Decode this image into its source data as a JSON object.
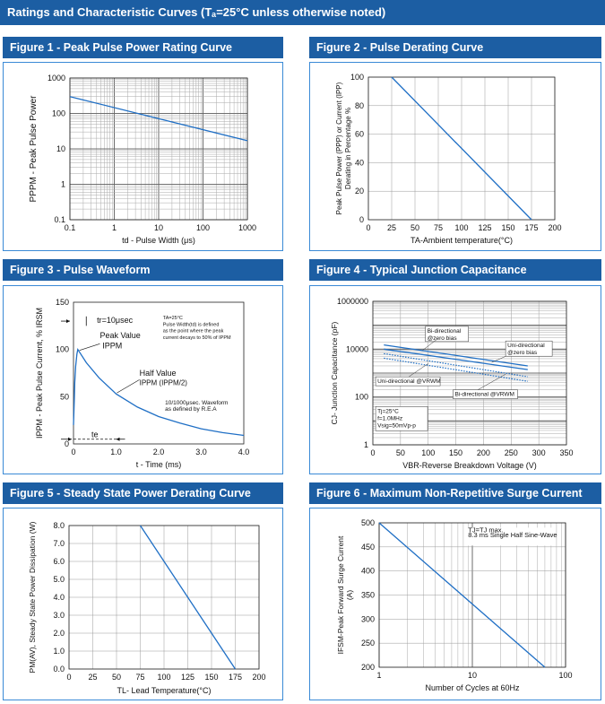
{
  "header": {
    "title": "Ratings and Characteristic Curves (Tₐ=25°C unless otherwise noted)"
  },
  "figures": {
    "f1": {
      "title": "Figure 1 - Peak Pulse Power Rating Curve"
    },
    "f2": {
      "title": "Figure 2 - Pulse Derating Curve"
    },
    "f3": {
      "title": "Figure 3 - Pulse Waveform"
    },
    "f4": {
      "title": "Figure 4 - Typical Junction Capacitance"
    },
    "f5": {
      "title": "Figure 5 - Steady State Power Derating Curve"
    },
    "f6": {
      "title": "Figure 6 - Maximum Non-Repetitive Surge Current"
    }
  },
  "colors": {
    "header_bg": "#1c5ea3",
    "frame": "#3a8ad6",
    "curve": "#1f6fc5",
    "grid": "#999999"
  },
  "chart_data": [
    {
      "id": "f1",
      "type": "line",
      "xscale": "log",
      "yscale": "log",
      "title": "Figure 1 - Peak Pulse Power Rating Curve",
      "xlabel": "td - Pulse Width (μs)",
      "ylabel": "PPPM - Peak Pulse Power",
      "xlim": [
        0.1,
        1000
      ],
      "ylim": [
        0.1,
        1000
      ],
      "xticks": [
        0.1,
        1,
        10,
        100,
        1000
      ],
      "xtick_labels": [
        "0.1",
        "1",
        "10",
        "100",
        "1000"
      ],
      "yticks": [
        0.1,
        1,
        10,
        100,
        1000
      ],
      "ytick_labels": [
        "0.1",
        "1",
        "10",
        "100",
        "1000"
      ],
      "series": [
        {
          "name": "PPPM",
          "x": [
            0.1,
            1000
          ],
          "y": [
            300,
            17
          ]
        }
      ]
    },
    {
      "id": "f2",
      "type": "line",
      "title": "Figure 2 - Pulse Derating Curve",
      "xlabel": "TA-Ambient temperature(°C)",
      "ylabel": [
        "Peak Pulse Power (PPP) or Current (IPP)",
        "Derating in Percentage %"
      ],
      "xlim": [
        0,
        200
      ],
      "ylim": [
        0,
        100
      ],
      "xticks": [
        0,
        25,
        50,
        75,
        100,
        125,
        150,
        175,
        200
      ],
      "xtick_labels": [
        "0",
        "25",
        "50",
        "75",
        "100",
        "125",
        "150",
        "175",
        "200"
      ],
      "yticks": [
        0,
        20,
        40,
        60,
        80,
        100
      ],
      "ytick_labels": [
        "0",
        "20",
        "40",
        "60",
        "80",
        "100"
      ],
      "series": [
        {
          "name": "Derating",
          "x": [
            25,
            175
          ],
          "y": [
            100,
            0
          ]
        }
      ]
    },
    {
      "id": "f3",
      "type": "line",
      "title": "Figure 3 - Pulse Waveform",
      "xlabel": "t - Time (ms)",
      "ylabel": "IPPM - Peak Pulse Current, % IRSM",
      "xlim": [
        0,
        4.0
      ],
      "ylim": [
        0,
        150
      ],
      "xticks": [
        0,
        1.0,
        2.0,
        3.0,
        4.0
      ],
      "xtick_labels": [
        "0",
        "1.0",
        "2.0",
        "3.0",
        "4.0"
      ],
      "yticks": [
        0,
        50,
        100,
        150
      ],
      "ytick_labels": [
        "0",
        "50",
        "100",
        "150"
      ],
      "series": [
        {
          "name": "Waveform",
          "x": [
            0,
            0.01,
            0.02,
            0.03,
            0.05,
            0.08,
            0.1,
            0.3,
            0.6,
            1.0,
            1.5,
            2.0,
            2.5,
            3.0,
            3.5,
            4.0
          ],
          "y": [
            20,
            35,
            50,
            65,
            82,
            95,
            100,
            86,
            70,
            53,
            39,
            29,
            22,
            16,
            12,
            9
          ]
        }
      ],
      "annotations": {
        "tr": "tr=10μsec",
        "peak_value_1": "Peak Value",
        "peak_value_2": "IPPM",
        "half_value_1": "Half Value",
        "half_value_2": "IPPM (IPPM/2)",
        "note_1": "TA=25°C",
        "note_2": "Pulse Width(td) is defined",
        "note_3": "as the point where the peak",
        "note_4": "current decays to 50% of IPPM",
        "wave_1": "10/1000μsec. Waveform",
        "wave_2": "as defined by R.E.A",
        "te": "te"
      }
    },
    {
      "id": "f4",
      "type": "line",
      "yscale": "log",
      "title": "Figure 4 - Typical Junction Capacitance",
      "xlabel": "VBR-Reverse Breakdown Voltage (V)",
      "ylabel": "CJ- Junction Capacitance (pF)",
      "xlim": [
        0,
        350
      ],
      "ylim": [
        1,
        1000000
      ],
      "xticks": [
        0,
        50,
        100,
        150,
        200,
        250,
        300,
        350
      ],
      "xtick_labels": [
        "0",
        "50",
        "100",
        "150",
        "200",
        "250",
        "300",
        "350"
      ],
      "yticks": [
        1,
        100,
        10000,
        1000000
      ],
      "ytick_labels": [
        "1",
        "100",
        "10000",
        "1000000"
      ],
      "series": [
        {
          "name": "Bi-directional @zero bias",
          "style": "solid",
          "x": [
            20,
            280
          ],
          "y": [
            15000,
            2000
          ]
        },
        {
          "name": "Uni-directional @zero bias",
          "style": "solid",
          "x": [
            20,
            280
          ],
          "y": [
            10000,
            1400
          ]
        },
        {
          "name": "Uni-directional @VRWM",
          "style": "dotted",
          "x": [
            20,
            280
          ],
          "y": [
            6500,
            700
          ]
        },
        {
          "name": "Bi-directional @VRWM",
          "style": "dotted",
          "x": [
            20,
            280
          ],
          "y": [
            4200,
            450
          ]
        }
      ],
      "annotations": {
        "bi_zero_1": "Bi-directional",
        "bi_zero_2": "@zero bias",
        "uni_zero_1": "Uni-directional",
        "uni_zero_2": "@zero bias",
        "uni_vrwm": "Uni-directional @VRWM",
        "bi_vrwm": "Bi-directional @VRWM",
        "cond_1": "Tj=25°C",
        "cond_2": "f=1.0MHz",
        "cond_3": "Vsig=50mVp-p"
      }
    },
    {
      "id": "f5",
      "type": "line",
      "title": "Figure 5 - Steady State Power Derating Curve",
      "xlabel": "TL- Lead Temperature(°C)",
      "ylabel": "PM(AV), Steady State Power Dissipation (W)",
      "xlim": [
        0,
        200
      ],
      "ylim": [
        0,
        8.0
      ],
      "xticks": [
        0,
        25,
        50,
        75,
        100,
        125,
        150,
        175,
        200
      ],
      "xtick_labels": [
        "0",
        "25",
        "50",
        "75",
        "100",
        "125",
        "150",
        "175",
        "200"
      ],
      "yticks": [
        0,
        1,
        2,
        3,
        4,
        5,
        6,
        7,
        8
      ],
      "ytick_labels": [
        "0.0",
        "1.0",
        "2.0",
        "3.0",
        "4.0",
        "5.0",
        "6.0",
        "7.0",
        "8.0"
      ],
      "series": [
        {
          "name": "PM(AV)",
          "x": [
            75,
            175
          ],
          "y": [
            8.0,
            0
          ]
        }
      ]
    },
    {
      "id": "f6",
      "type": "line",
      "xscale": "log",
      "title": "Figure 6 - Maximum Non-Repetitive Surge Current",
      "xlabel": "Number of Cycles at 60Hz",
      "ylabel": [
        "IFSM-Peak Forward Surge Current",
        "(A)"
      ],
      "xlim": [
        1,
        100
      ],
      "ylim": [
        200,
        500
      ],
      "xticks": [
        1,
        10,
        100
      ],
      "xtick_labels": [
        "1",
        "10",
        "100"
      ],
      "yticks": [
        200,
        250,
        300,
        350,
        400,
        450,
        500
      ],
      "ytick_labels": [
        "200",
        "250",
        "300",
        "350",
        "400",
        "450",
        "500"
      ],
      "series": [
        {
          "name": "IFSM",
          "x": [
            1,
            60
          ],
          "y": [
            500,
            200
          ]
        }
      ],
      "annotations": {
        "cond_1": "TJ=TJ max.",
        "cond_2": "8.3 ms Single Half Sine-Wave"
      }
    }
  ]
}
